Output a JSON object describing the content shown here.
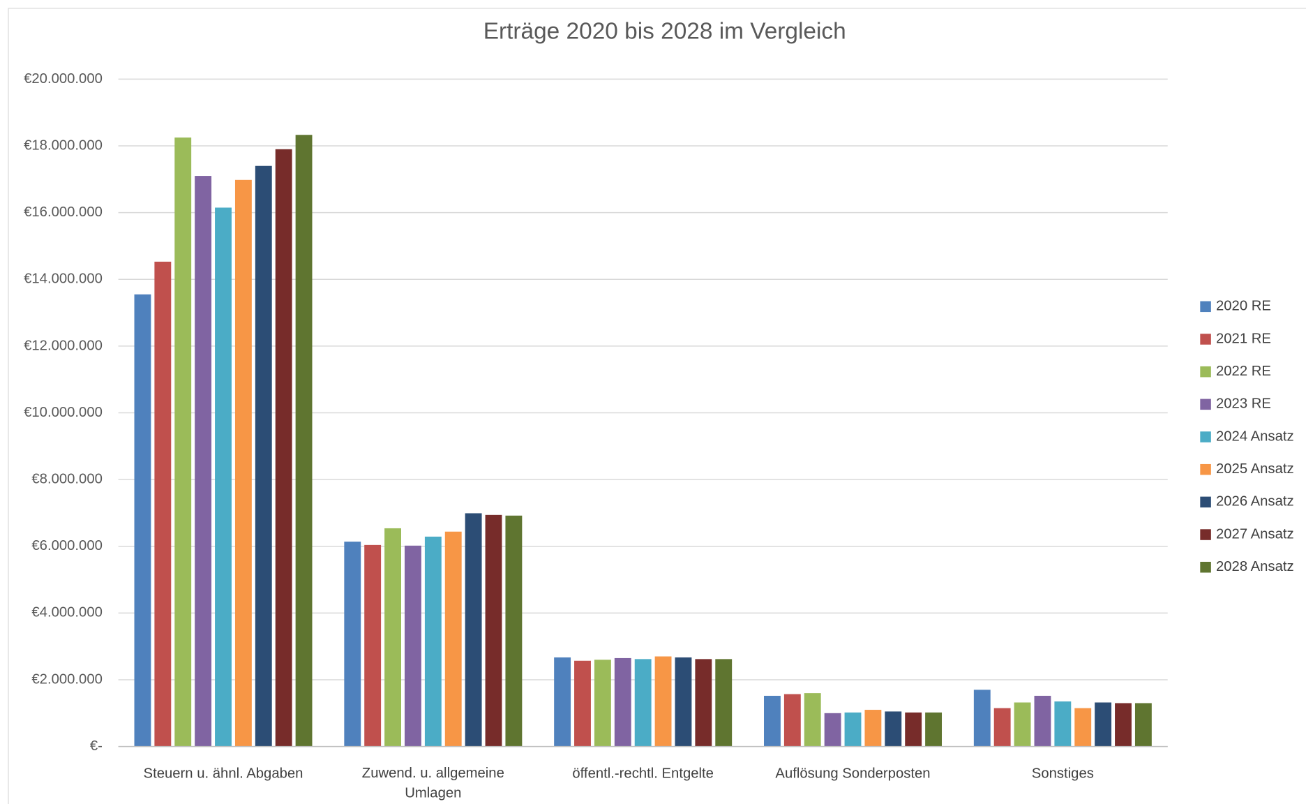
{
  "chart_data": {
    "type": "bar",
    "title": "Erträge 2020 bis 2028 im Vergleich",
    "categories": [
      "Steuern u. ähnl. Abgaben",
      "Zuwend. u. allgemeine Umlagen",
      "öffentl.-rechtl. Entgelte",
      "Auflösung Sonderposten",
      "Sonstiges"
    ],
    "series": [
      {
        "name": "2020 RE",
        "color": "#4f81bd",
        "values": [
          13550000,
          6140000,
          2670000,
          1520000,
          1700000
        ]
      },
      {
        "name": "2021 RE",
        "color": "#c0504d",
        "values": [
          14530000,
          6040000,
          2570000,
          1570000,
          1150000
        ]
      },
      {
        "name": "2022 RE",
        "color": "#9bbb59",
        "values": [
          18250000,
          6540000,
          2600000,
          1600000,
          1320000
        ]
      },
      {
        "name": "2023 RE",
        "color": "#8064a2",
        "values": [
          17100000,
          6020000,
          2650000,
          1000000,
          1520000
        ]
      },
      {
        "name": "2024 Ansatz",
        "color": "#4bacc6",
        "values": [
          16150000,
          6290000,
          2620000,
          1020000,
          1350000
        ]
      },
      {
        "name": "2025 Ansatz",
        "color": "#f79646",
        "values": [
          16980000,
          6440000,
          2700000,
          1100000,
          1150000
        ]
      },
      {
        "name": "2026 Ansatz",
        "color": "#2c4d75",
        "values": [
          17400000,
          6990000,
          2670000,
          1050000,
          1320000
        ]
      },
      {
        "name": "2027 Ansatz",
        "color": "#772c2a",
        "values": [
          17900000,
          6940000,
          2620000,
          1020000,
          1300000
        ]
      },
      {
        "name": "2028 Ansatz",
        "color": "#5f7530",
        "values": [
          18330000,
          6920000,
          2620000,
          1020000,
          1300000
        ]
      }
    ],
    "ylim": [
      0,
      20000000
    ],
    "yticks": [
      {
        "value": 0,
        "label": "€-"
      },
      {
        "value": 2000000,
        "label": "€2.000.000"
      },
      {
        "value": 4000000,
        "label": "€4.000.000"
      },
      {
        "value": 6000000,
        "label": "€6.000.000"
      },
      {
        "value": 8000000,
        "label": "€8.000.000"
      },
      {
        "value": 10000000,
        "label": "€10.000.000"
      },
      {
        "value": 12000000,
        "label": "€12.000.000"
      },
      {
        "value": 14000000,
        "label": "€14.000.000"
      },
      {
        "value": 16000000,
        "label": "€16.000.000"
      },
      {
        "value": 18000000,
        "label": "€18.000.000"
      },
      {
        "value": 20000000,
        "label": "€20.000.000"
      }
    ],
    "grid": true,
    "legend": "right"
  }
}
